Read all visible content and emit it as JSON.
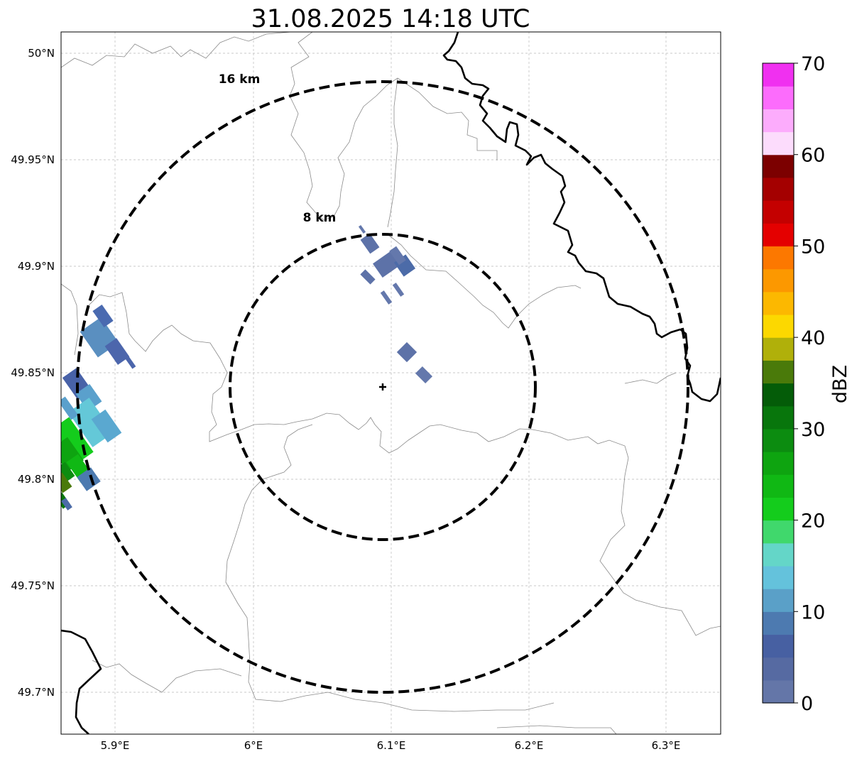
{
  "title": "31.08.2025 14:18 UTC",
  "map": {
    "lon_ticks": [
      "5.9°E",
      "6°E",
      "6.1°E",
      "6.2°E",
      "6.3°E"
    ],
    "lat_ticks": [
      "50°N",
      "49.95°N",
      "49.9°N",
      "49.85°N",
      "49.8°N",
      "49.75°N",
      "49.7°N"
    ],
    "radar_marker": "radar-site-cross",
    "range_rings": [
      {
        "label": "8 km",
        "radius_km": 8
      },
      {
        "label": "16 km",
        "radius_km": 16
      }
    ]
  },
  "colorbar": {
    "label": "dBZ",
    "ticks": [
      "0",
      "10",
      "20",
      "30",
      "40",
      "50",
      "60",
      "70"
    ],
    "range": [
      0,
      70
    ],
    "step": 2.5,
    "colors": [
      "#6476a8",
      "#566aa2",
      "#4760a2",
      "#4d7ab0",
      "#5aa0c8",
      "#64c2dc",
      "#64d6c8",
      "#40d86c",
      "#14cc1c",
      "#10b814",
      "#0ea410",
      "#0c8c10",
      "#08760c",
      "#045c08",
      "#4a7a0a",
      "#b0b00a",
      "#fcd800",
      "#fcb800",
      "#fc9800",
      "#fc7800",
      "#e40000",
      "#c40000",
      "#a40000",
      "#7c0000",
      "#fcdcfc",
      "#fcacfc",
      "#fc6cfc",
      "#f030f0"
    ]
  }
}
